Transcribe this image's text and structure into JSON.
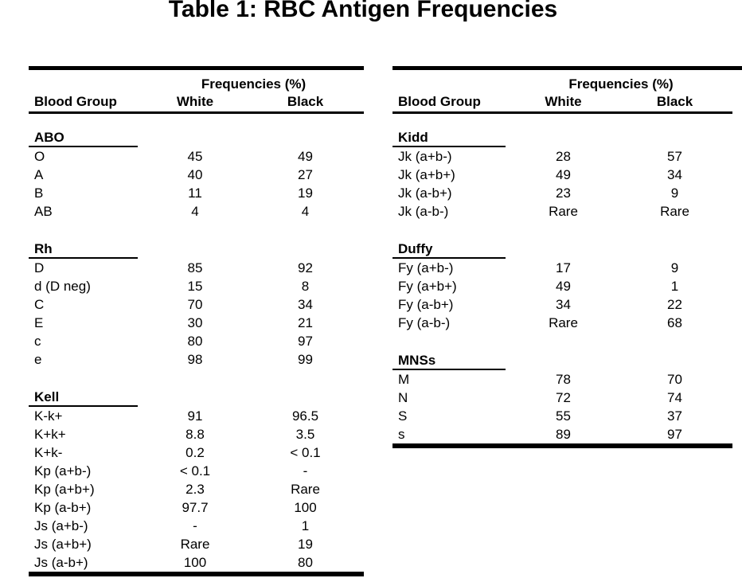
{
  "page": {
    "title": "Table 1: RBC Antigen Frequencies",
    "text_color": "#000000",
    "background_color": "#ffffff"
  },
  "tables": [
    {
      "id": "left",
      "freq_header": "Frequencies (%)",
      "columns": {
        "group": "Blood Group",
        "white": "White",
        "black": "Black"
      },
      "sections": [
        {
          "name": "ABO",
          "rows": [
            {
              "label": "O",
              "white": "45",
              "black": "49"
            },
            {
              "label": "A",
              "white": "40",
              "black": "27"
            },
            {
              "label": "B",
              "white": "11",
              "black": "19"
            },
            {
              "label": "AB",
              "white": "4",
              "black": "4"
            }
          ]
        },
        {
          "name": "Rh",
          "rows": [
            {
              "label": "D",
              "white": "85",
              "black": "92"
            },
            {
              "label": "d (D neg)",
              "white": "15",
              "black": "8"
            },
            {
              "label": "C",
              "white": "70",
              "black": "34"
            },
            {
              "label": "E",
              "white": "30",
              "black": "21"
            },
            {
              "label": "c",
              "white": "80",
              "black": "97"
            },
            {
              "label": "e",
              "white": "98",
              "black": "99"
            }
          ]
        },
        {
          "name": "Kell",
          "rows": [
            {
              "label": "K-k+",
              "white": "91",
              "black": "96.5"
            },
            {
              "label": "K+k+",
              "white": "8.8",
              "black": "3.5"
            },
            {
              "label": "K+k-",
              "white": "0.2",
              "black": "< 0.1"
            },
            {
              "label": "Kp (a+b-)",
              "white": "< 0.1",
              "black": "-"
            },
            {
              "label": "Kp (a+b+)",
              "white": "2.3",
              "black": "Rare"
            },
            {
              "label": "Kp (a-b+)",
              "white": "97.7",
              "black": "100"
            },
            {
              "label": "Js (a+b-)",
              "white": "-",
              "black": "1"
            },
            {
              "label": "Js (a+b+)",
              "white": "Rare",
              "black": "19"
            },
            {
              "label": "Js (a-b+)",
              "white": "100",
              "black": "80"
            }
          ]
        }
      ]
    },
    {
      "id": "right",
      "freq_header": "Frequencies (%)",
      "columns": {
        "group": "Blood Group",
        "white": "White",
        "black": "Black"
      },
      "sections": [
        {
          "name": "Kidd",
          "rows": [
            {
              "label": "Jk (a+b-)",
              "white": "28",
              "black": "57"
            },
            {
              "label": "Jk (a+b+)",
              "white": "49",
              "black": "34"
            },
            {
              "label": "Jk (a-b+)",
              "white": "23",
              "black": "9"
            },
            {
              "label": "Jk (a-b-)",
              "white": "Rare",
              "black": "Rare"
            }
          ]
        },
        {
          "name": "Duffy",
          "rows": [
            {
              "label": "Fy (a+b-)",
              "white": "17",
              "black": "9"
            },
            {
              "label": "Fy (a+b+)",
              "white": "49",
              "black": "1"
            },
            {
              "label": "Fy (a-b+)",
              "white": "34",
              "black": "22"
            },
            {
              "label": "Fy (a-b-)",
              "white": "Rare",
              "black": "68"
            }
          ]
        },
        {
          "name": "MNSs",
          "rows": [
            {
              "label": "M",
              "white": "78",
              "black": "70"
            },
            {
              "label": "N",
              "white": "72",
              "black": "74"
            },
            {
              "label": "S",
              "white": "55",
              "black": "37"
            },
            {
              "label": "s",
              "white": "89",
              "black": "97"
            }
          ]
        }
      ]
    }
  ]
}
